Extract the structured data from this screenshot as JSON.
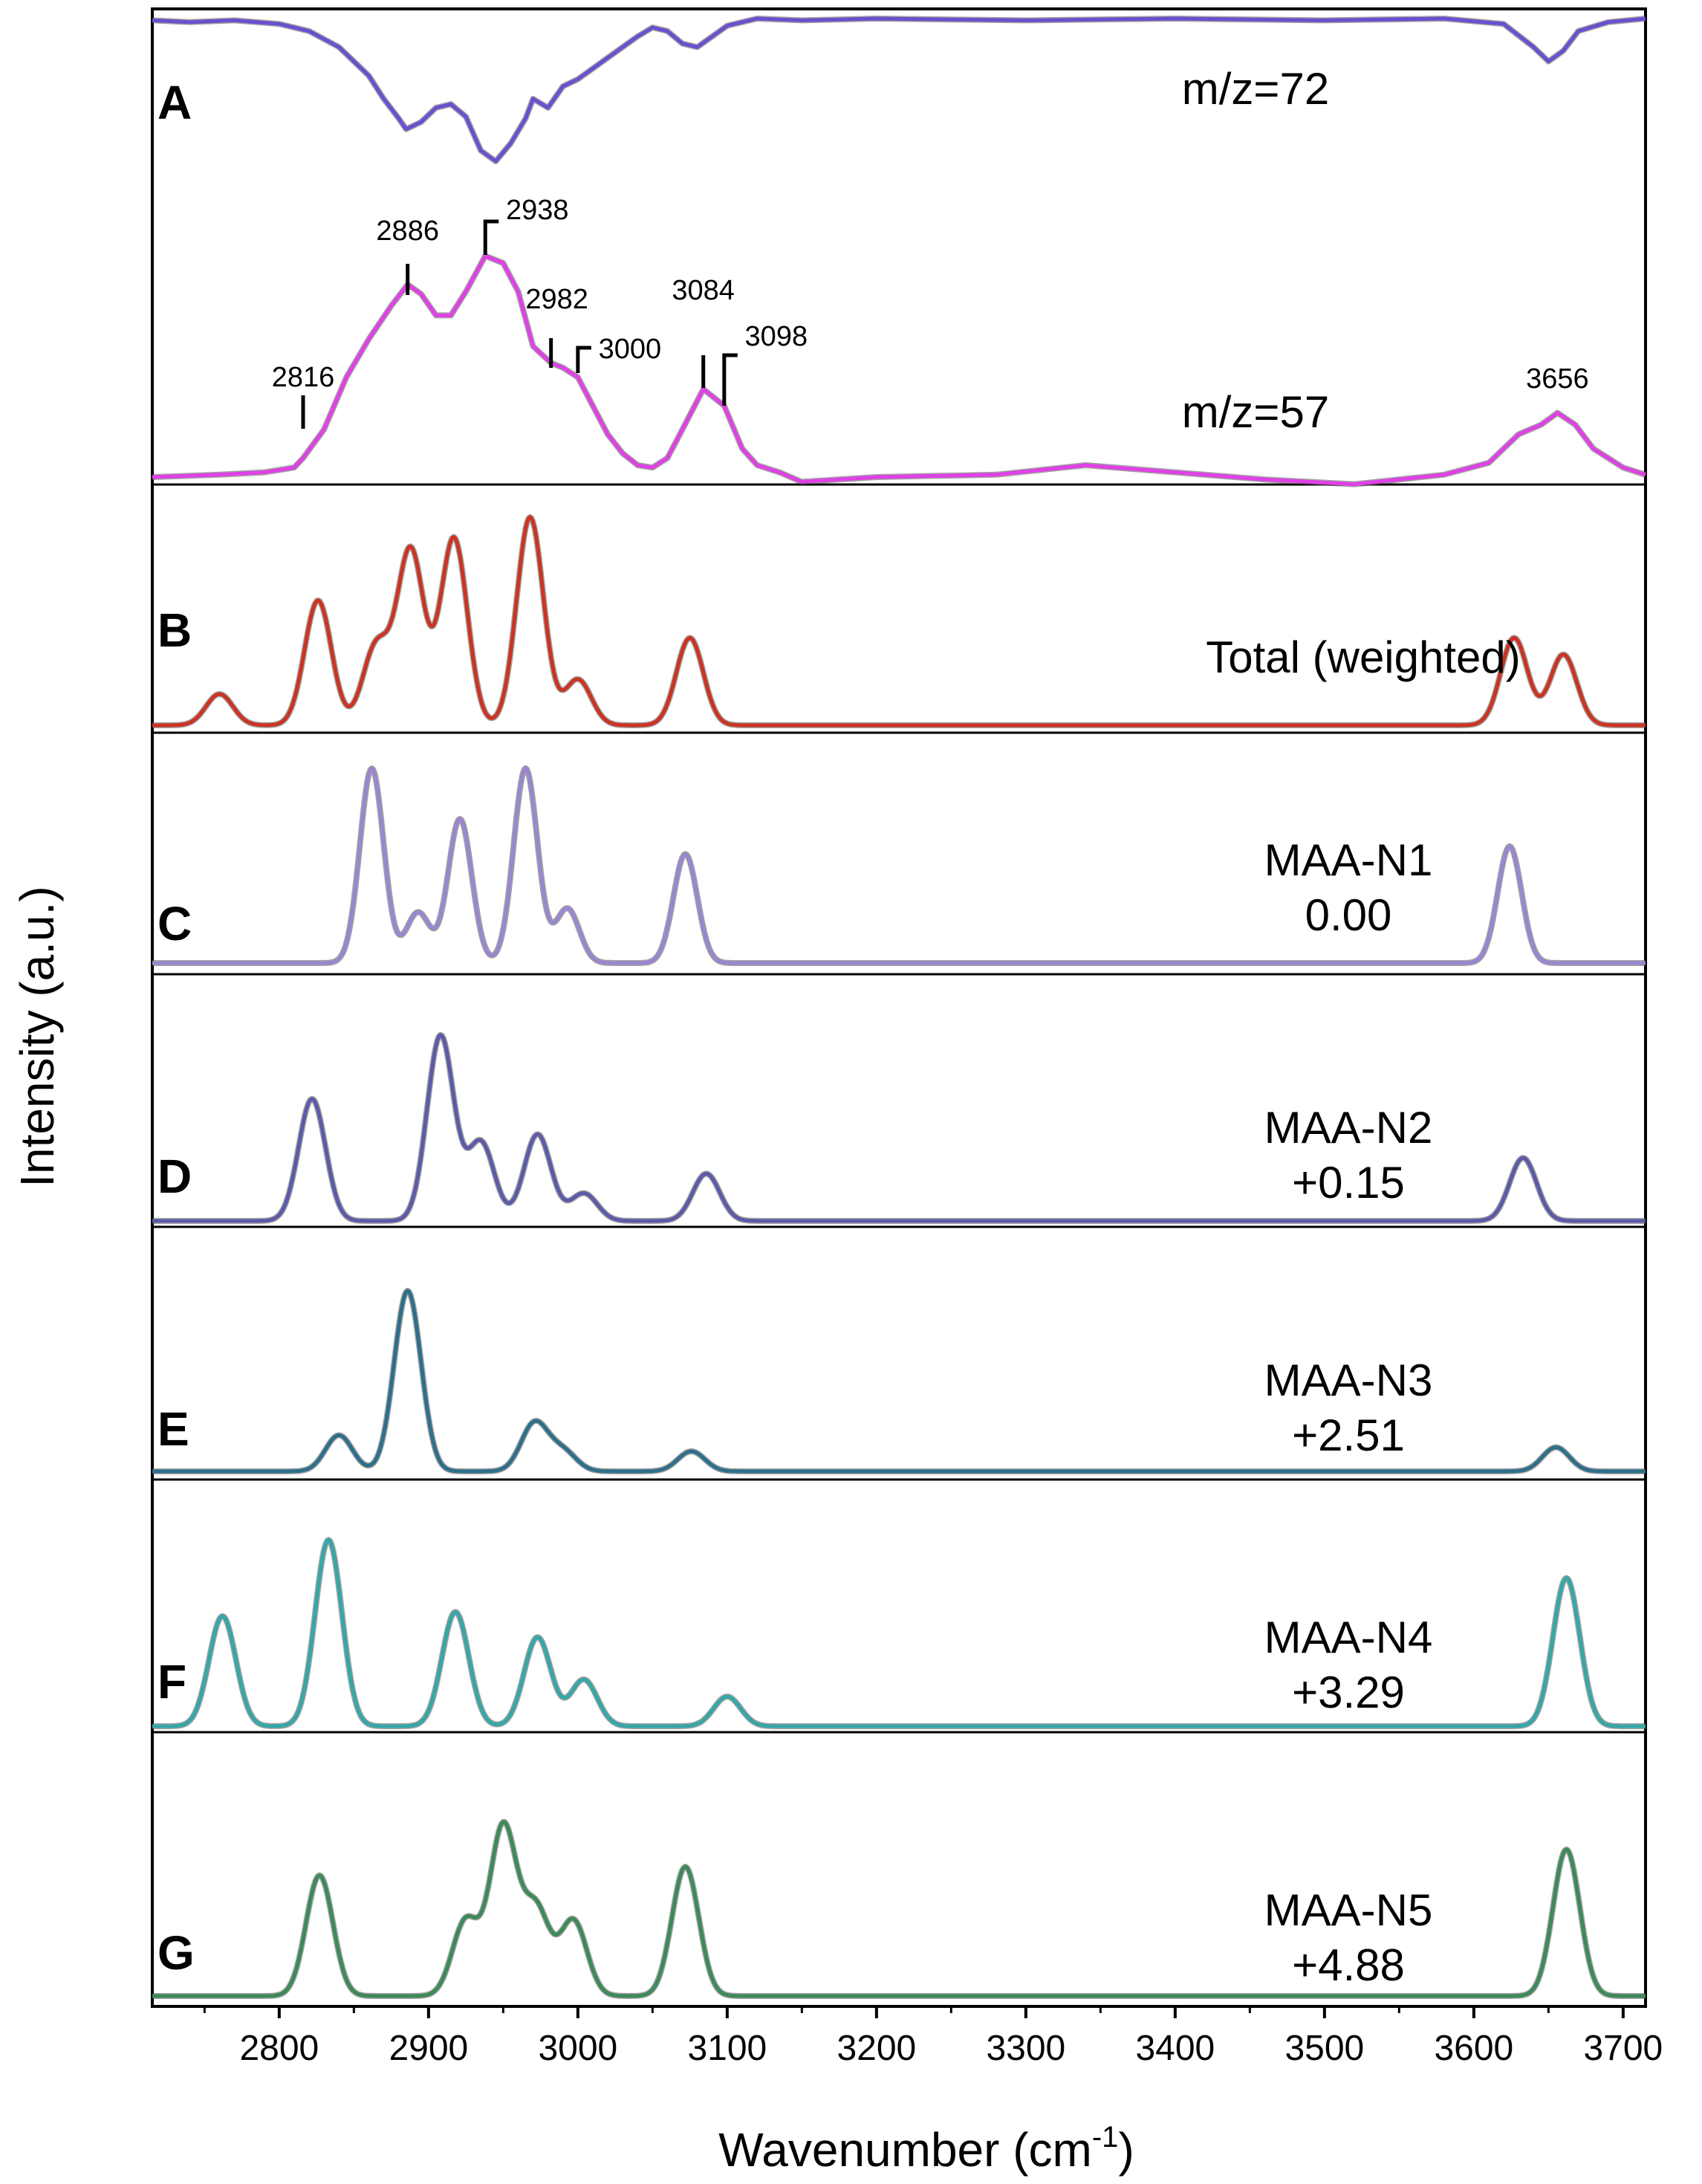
{
  "chart_data": {
    "type": "line",
    "xlabel_main": "Wavenumber (cm",
    "xlabel_sup": "-1",
    "xlabel_close": ")",
    "ylabel": "Intensity (a.u.)",
    "xlim": [
      2715,
      3715
    ],
    "x_ticks": [
      2800,
      2900,
      3000,
      3100,
      3200,
      3300,
      3400,
      3500,
      3600,
      3700
    ],
    "grid": false,
    "series_colors": {
      "m72": "#6a4fd0",
      "m57": "#e040e6",
      "total": "#cc3322",
      "n1": "#9a86d0",
      "n2": "#5c5aa8",
      "n3": "#2d6f8a",
      "n4": "#35a7a8",
      "n5": "#3c8a58"
    },
    "panels": [
      {
        "letter": "A",
        "traces": [
          {
            "label": "m/z=72",
            "color_key": "m72",
            "kind": "experimental",
            "x": [
              2715,
              2740,
              2770,
              2800,
              2820,
              2840,
              2860,
              2870,
              2880,
              2885,
              2895,
              2905,
              2915,
              2925,
              2935,
              2945,
              2955,
              2965,
              2970,
              2980,
              2990,
              3000,
              3010,
              3020,
              3030,
              3040,
              3050,
              3060,
              3070,
              3080,
              3090,
              3100,
              3120,
              3150,
              3200,
              3300,
              3400,
              3500,
              3580,
              3620,
              3640,
              3650,
              3660,
              3670,
              3690,
              3715
            ],
            "y": [
              0.99,
              0.98,
              0.99,
              0.97,
              0.93,
              0.84,
              0.68,
              0.55,
              0.44,
              0.38,
              0.42,
              0.5,
              0.52,
              0.45,
              0.26,
              0.2,
              0.3,
              0.44,
              0.55,
              0.5,
              0.62,
              0.66,
              0.72,
              0.78,
              0.84,
              0.9,
              0.95,
              0.93,
              0.86,
              0.84,
              0.9,
              0.96,
              1.0,
              0.99,
              1.0,
              0.99,
              1.0,
              0.99,
              1.0,
              0.97,
              0.84,
              0.76,
              0.82,
              0.93,
              0.98,
              1.0
            ]
          },
          {
            "label": "m/z=57",
            "color_key": "m57",
            "kind": "experimental",
            "x": [
              2715,
              2760,
              2790,
              2810,
              2816,
              2830,
              2845,
              2860,
              2875,
              2886,
              2895,
              2905,
              2915,
              2925,
              2938,
              2950,
              2960,
              2970,
              2982,
              2990,
              3000,
              3010,
              3020,
              3030,
              3040,
              3050,
              3060,
              3070,
              3084,
              3098,
              3110,
              3120,
              3135,
              3150,
              3200,
              3280,
              3340,
              3400,
              3460,
              3520,
              3580,
              3610,
              3630,
              3645,
              3656,
              3668,
              3680,
              3700,
              3715
            ],
            "y": [
              0.0,
              0.01,
              0.02,
              0.04,
              0.08,
              0.2,
              0.42,
              0.58,
              0.72,
              0.81,
              0.77,
              0.68,
              0.68,
              0.78,
              0.93,
              0.9,
              0.78,
              0.55,
              0.48,
              0.46,
              0.42,
              0.3,
              0.18,
              0.1,
              0.05,
              0.04,
              0.08,
              0.2,
              0.37,
              0.3,
              0.12,
              0.05,
              0.02,
              -0.02,
              0.0,
              0.01,
              0.05,
              0.02,
              -0.01,
              -0.03,
              0.01,
              0.06,
              0.18,
              0.22,
              0.27,
              0.22,
              0.12,
              0.04,
              0.01
            ]
          }
        ],
        "annotations": [
          {
            "text": "2816",
            "x": 2816
          },
          {
            "text": "2886",
            "x": 2886
          },
          {
            "text": "2938",
            "x": 2938
          },
          {
            "text": "2982",
            "x": 2982
          },
          {
            "text": "3000",
            "x": 3000
          },
          {
            "text": "3084",
            "x": 3084
          },
          {
            "text": "3098",
            "x": 3098
          },
          {
            "text": "3656",
            "x": 3656
          }
        ]
      },
      {
        "letter": "B",
        "traces": [
          {
            "label": "Total (weighted)",
            "color_key": "total",
            "kind": "gaussian",
            "sigma": 9,
            "peaks": [
              [
                2760,
                0.15
              ],
              [
                2826,
                0.6
              ],
              [
                2865,
                0.38
              ],
              [
                2888,
                0.84
              ],
              [
                2917,
                0.9
              ],
              [
                2968,
                1.0
              ],
              [
                3000,
                0.22
              ],
              [
                3075,
                0.42
              ],
              [
                3627,
                0.42
              ],
              [
                3660,
                0.34
              ]
            ]
          }
        ]
      },
      {
        "letter": "C",
        "traces": [
          {
            "label": "MAA-N1",
            "sublabel": "0.00",
            "color_key": "n1",
            "kind": "gaussian",
            "sigma": 8,
            "peaks": [
              [
                2862,
                1.0
              ],
              [
                2893,
                0.26
              ],
              [
                2921,
                0.74
              ],
              [
                2965,
                1.0
              ],
              [
                2993,
                0.28
              ],
              [
                3072,
                0.56
              ],
              [
                3624,
                0.6
              ]
            ]
          }
        ]
      },
      {
        "letter": "D",
        "traces": [
          {
            "label": "MAA-N2",
            "sublabel": "+0.15",
            "color_key": "n2",
            "kind": "gaussian",
            "sigma": 9,
            "peaks": [
              [
                2822,
                0.62
              ],
              [
                2908,
                0.94
              ],
              [
                2935,
                0.4
              ],
              [
                2973,
                0.44
              ],
              [
                3004,
                0.14
              ],
              [
                3086,
                0.24
              ],
              [
                3633,
                0.32
              ]
            ]
          }
        ]
      },
      {
        "letter": "E",
        "traces": [
          {
            "label": "MAA-N3",
            "sublabel": "+2.51",
            "color_key": "n3",
            "kind": "gaussian",
            "sigma": 9,
            "peaks": [
              [
                2840,
                0.18
              ],
              [
                2886,
                0.9
              ],
              [
                2971,
                0.24
              ],
              [
                2990,
                0.1
              ],
              [
                3076,
                0.1
              ],
              [
                3655,
                0.12
              ]
            ]
          }
        ]
      },
      {
        "letter": "F",
        "traces": [
          {
            "label": "MAA-N4",
            "sublabel": "+3.29",
            "color_key": "n4",
            "kind": "gaussian",
            "sigma": 9,
            "peaks": [
              [
                2762,
                0.52
              ],
              [
                2833,
                0.88
              ],
              [
                2918,
                0.54
              ],
              [
                2973,
                0.42
              ],
              [
                3004,
                0.22
              ],
              [
                3100,
                0.14
              ],
              [
                3662,
                0.7
              ]
            ]
          }
        ]
      },
      {
        "letter": "G",
        "traces": [
          {
            "label": "MAA-N5",
            "sublabel": "+4.88",
            "color_key": "n5",
            "kind": "gaussian",
            "sigma": 9,
            "peaks": [
              [
                2827,
                0.56
              ],
              [
                2925,
                0.35
              ],
              [
                2950,
                0.78
              ],
              [
                2972,
                0.4
              ],
              [
                2997,
                0.35
              ],
              [
                3072,
                0.6
              ],
              [
                3662,
                0.68
              ]
            ]
          }
        ]
      }
    ]
  }
}
